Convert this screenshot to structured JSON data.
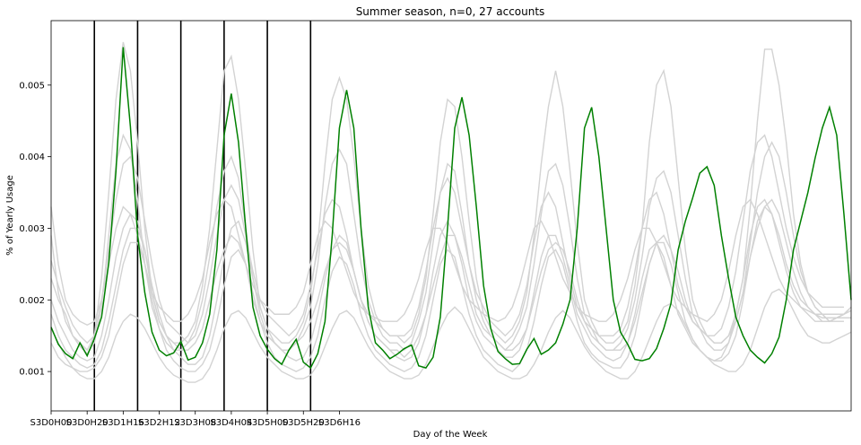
{
  "chart_data": {
    "type": "line",
    "title": "Summer season, n=0, 27 accounts",
    "xlabel": "Day of the Week",
    "ylabel": "% of Yearly Usage",
    "x_start": "S3D0H00",
    "x_step_hours": 4,
    "xtick_labels": [
      "S3D0H00",
      "S3D0H20",
      "S3D1H16",
      "S3D2H12",
      "S3D3H08",
      "S3D4H04",
      "S3D5H00",
      "S3D5H20",
      "S3D6H16"
    ],
    "ytick_labels": [
      "0.001",
      "0.002",
      "0.003",
      "0.004",
      "0.005"
    ],
    "ylim": [
      0.00045,
      0.0059
    ],
    "day_boundaries": [
      "S3D1H00",
      "S3D2H00",
      "S3D3H00",
      "S3D4H00",
      "S3D5H00",
      "S3D6H00"
    ],
    "grid": false,
    "series_colors": {
      "mean": "#008000",
      "accounts": "#d3d3d3"
    },
    "series": [
      {
        "role": "mean",
        "values": [
          0.00162,
          0.00138,
          0.00125,
          0.00118,
          0.0014,
          0.00122,
          0.00146,
          0.00176,
          0.00252,
          0.0038,
          0.00553,
          0.00442,
          0.0029,
          0.0021,
          0.00155,
          0.0013,
          0.00122,
          0.00126,
          0.00142,
          0.00116,
          0.0012,
          0.0014,
          0.0018,
          0.0027,
          0.0043,
          0.00488,
          0.0042,
          0.003,
          0.0019,
          0.0015,
          0.00131,
          0.00118,
          0.0011,
          0.0013,
          0.00145,
          0.00113,
          0.00105,
          0.00125,
          0.0017,
          0.0029,
          0.0044,
          0.00493,
          0.0044,
          0.003,
          0.0019,
          0.0014,
          0.0013,
          0.00118,
          0.00124,
          0.00132,
          0.00137,
          0.00108,
          0.00105,
          0.0012,
          0.00176,
          0.003,
          0.0044,
          0.00483,
          0.0043,
          0.0033,
          0.0022,
          0.0016,
          0.00128,
          0.00118,
          0.0011,
          0.00111,
          0.00131,
          0.00146,
          0.00124,
          0.0013,
          0.0014,
          0.00166,
          0.002,
          0.003,
          0.0044,
          0.00469,
          0.004,
          0.003,
          0.002,
          0.00155,
          0.00138,
          0.00117,
          0.00115,
          0.00118,
          0.00132,
          0.0016,
          0.00195,
          0.0027,
          0.0031,
          0.00342,
          0.00377,
          0.00386,
          0.0036,
          0.0029,
          0.0023,
          0.00176,
          0.0015,
          0.0013,
          0.0012,
          0.00112,
          0.00125,
          0.00148,
          0.002,
          0.0027,
          0.0031,
          0.0035,
          0.00398,
          0.0044,
          0.00469,
          0.0043,
          0.0032,
          0.002
        ]
      },
      {
        "role": "account",
        "values": [
          0.00255,
          0.0022,
          0.0019,
          0.00165,
          0.0015,
          0.0014,
          0.0015,
          0.0023,
          0.0035,
          0.0048,
          0.0056,
          0.0052,
          0.0042,
          0.003,
          0.0021,
          0.0017,
          0.0015,
          0.0014,
          0.0014,
          0.0015,
          0.0017,
          0.0022,
          0.003,
          0.0041,
          0.0052,
          0.0054,
          0.0048,
          0.0038,
          0.0027,
          0.0019,
          0.0016,
          0.0015,
          0.0014,
          0.0014,
          0.0015,
          0.0017,
          0.0021,
          0.0028,
          0.0039,
          0.0048,
          0.0051,
          0.0048,
          0.004,
          0.003,
          0.0022,
          0.0018,
          0.0016,
          0.0015,
          0.0015,
          0.0014,
          0.0015,
          0.0018,
          0.0023,
          0.0032,
          0.0042,
          0.0048,
          0.0047,
          0.004,
          0.0031,
          0.0023,
          0.0018,
          0.0016,
          0.0015,
          0.0014,
          0.0015,
          0.0017,
          0.0021,
          0.0029,
          0.0039,
          0.0047,
          0.0052,
          0.0047,
          0.0038,
          0.0028,
          0.002,
          0.0017,
          0.0015,
          0.0014,
          0.0014,
          0.0015,
          0.0017,
          0.0022,
          0.003,
          0.0042,
          0.005,
          0.0052,
          0.0047,
          0.0037,
          0.0027,
          0.002,
          0.0017,
          0.0015,
          0.0014,
          0.0014,
          0.0015,
          0.0018,
          0.0023,
          0.0033,
          0.0045,
          0.0055,
          0.0055,
          0.005,
          0.0042,
          0.0032,
          0.0025,
          0.0021,
          0.0019,
          0.0018,
          0.0017,
          0.00175,
          0.0018,
          0.0019
        ]
      },
      {
        "role": "account",
        "values": [
          0.0023,
          0.002,
          0.0018,
          0.0015,
          0.00135,
          0.00125,
          0.0014,
          0.0019,
          0.0029,
          0.0039,
          0.0043,
          0.0041,
          0.0034,
          0.0025,
          0.0019,
          0.0016,
          0.0014,
          0.0013,
          0.0013,
          0.0014,
          0.0016,
          0.002,
          0.0026,
          0.0033,
          0.0038,
          0.004,
          0.0037,
          0.003,
          0.0023,
          0.0018,
          0.0015,
          0.0014,
          0.0013,
          0.0013,
          0.0014,
          0.0016,
          0.0019,
          0.0025,
          0.0033,
          0.0039,
          0.0041,
          0.0039,
          0.0032,
          0.0025,
          0.002,
          0.0017,
          0.0015,
          0.0014,
          0.0014,
          0.0013,
          0.0014,
          0.0017,
          0.0021,
          0.0028,
          0.0035,
          0.0039,
          0.0038,
          0.0032,
          0.0025,
          0.002,
          0.0017,
          0.0015,
          0.0014,
          0.0013,
          0.0014,
          0.0016,
          0.0019,
          0.0025,
          0.0032,
          0.0038,
          0.0039,
          0.0036,
          0.003,
          0.0023,
          0.0018,
          0.0016,
          0.0014,
          0.0013,
          0.0013,
          0.0014,
          0.0016,
          0.002,
          0.0026,
          0.0033,
          0.0037,
          0.0038,
          0.0035,
          0.0029,
          0.0023,
          0.0018,
          0.0016,
          0.0014,
          0.0013,
          0.0013,
          0.0014,
          0.0017,
          0.0021,
          0.0028,
          0.0035,
          0.004,
          0.0042,
          0.004,
          0.0035,
          0.0029,
          0.0024,
          0.0021,
          0.0019,
          0.0018,
          0.0017,
          0.00175,
          0.0018,
          0.0019
        ]
      },
      {
        "role": "account",
        "values": [
          0.002,
          0.0017,
          0.0015,
          0.0013,
          0.0012,
          0.00115,
          0.0012,
          0.0015,
          0.002,
          0.0026,
          0.003,
          0.0032,
          0.0031,
          0.0027,
          0.0021,
          0.0017,
          0.0015,
          0.0014,
          0.0013,
          0.0013,
          0.0014,
          0.0016,
          0.002,
          0.0024,
          0.0027,
          0.0029,
          0.0028,
          0.0025,
          0.002,
          0.0017,
          0.0015,
          0.0014,
          0.0013,
          0.0013,
          0.0014,
          0.0015,
          0.0017,
          0.002,
          0.0024,
          0.0027,
          0.0028,
          0.0027,
          0.0024,
          0.002,
          0.0017,
          0.0015,
          0.0014,
          0.0013,
          0.0013,
          0.0012,
          0.0013,
          0.0015,
          0.0018,
          0.0022,
          0.0026,
          0.0029,
          0.0029,
          0.0026,
          0.0022,
          0.0018,
          0.0016,
          0.0015,
          0.0014,
          0.0013,
          0.0013,
          0.0014,
          0.0016,
          0.002,
          0.0024,
          0.0027,
          0.0028,
          0.0027,
          0.0024,
          0.002,
          0.0017,
          0.0015,
          0.0014,
          0.0013,
          0.0013,
          0.0013,
          0.0014,
          0.0017,
          0.0021,
          0.0025,
          0.0028,
          0.0029,
          0.0027,
          0.0024,
          0.002,
          0.0017,
          0.0016,
          0.0015,
          0.0014,
          0.0014,
          0.0015,
          0.0017,
          0.0021,
          0.0026,
          0.003,
          0.0033,
          0.0034,
          0.0032,
          0.0028,
          0.0024,
          0.0021,
          0.0019,
          0.0018,
          0.0017,
          0.0017,
          0.00175,
          0.0018,
          0.00185
        ]
      },
      {
        "role": "account",
        "values": [
          0.0016,
          0.0014,
          0.0012,
          0.00105,
          0.00095,
          0.0009,
          0.0009,
          0.001,
          0.0012,
          0.0015,
          0.0017,
          0.0018,
          0.00175,
          0.0016,
          0.0014,
          0.0012,
          0.00105,
          0.00095,
          0.0009,
          0.00085,
          0.00085,
          0.0009,
          0.00105,
          0.0013,
          0.0016,
          0.0018,
          0.00185,
          0.00175,
          0.00155,
          0.00135,
          0.0012,
          0.0011,
          0.001,
          0.00095,
          0.0009,
          0.0009,
          0.00095,
          0.0011,
          0.00135,
          0.0016,
          0.0018,
          0.00185,
          0.00175,
          0.00155,
          0.00135,
          0.0012,
          0.0011,
          0.001,
          0.00095,
          0.0009,
          0.0009,
          0.00095,
          0.0011,
          0.00135,
          0.0016,
          0.0018,
          0.0019,
          0.0018,
          0.0016,
          0.0014,
          0.0012,
          0.0011,
          0.001,
          0.00095,
          0.0009,
          0.0009,
          0.00095,
          0.0011,
          0.0013,
          0.00155,
          0.00175,
          0.00185,
          0.00175,
          0.00155,
          0.00135,
          0.0012,
          0.0011,
          0.001,
          0.00095,
          0.0009,
          0.0009,
          0.001,
          0.0012,
          0.00145,
          0.0017,
          0.0019,
          0.00195,
          0.00185,
          0.00165,
          0.00145,
          0.0013,
          0.0012,
          0.0011,
          0.00105,
          0.001,
          0.001,
          0.0011,
          0.0013,
          0.0016,
          0.0019,
          0.0021,
          0.00215,
          0.00205,
          0.00185,
          0.00165,
          0.0015,
          0.00145,
          0.0014,
          0.0014,
          0.00145,
          0.0015,
          0.00155
        ]
      },
      {
        "role": "account",
        "values": [
          0.0029,
          0.0021,
          0.0017,
          0.0015,
          0.0014,
          0.0013,
          0.0015,
          0.002,
          0.0027,
          0.0034,
          0.0039,
          0.004,
          0.0037,
          0.0031,
          0.0025,
          0.002,
          0.0017,
          0.0016,
          0.0015,
          0.0014,
          0.0015,
          0.0018,
          0.0023,
          0.0029,
          0.0034,
          0.0036,
          0.0034,
          0.0029,
          0.0024,
          0.002,
          0.0018,
          0.0017,
          0.0016,
          0.0015,
          0.0016,
          0.0018,
          0.0022,
          0.0027,
          0.0032,
          0.0034,
          0.0033,
          0.0029,
          0.0024,
          0.002,
          0.0018,
          0.0017,
          0.0016,
          0.0015,
          0.0015,
          0.0015,
          0.0016,
          0.0019,
          0.0024,
          0.003,
          0.0035,
          0.0037,
          0.0035,
          0.003,
          0.0025,
          0.0021,
          0.0019,
          0.0017,
          0.0016,
          0.0015,
          0.0016,
          0.0018,
          0.0022,
          0.0028,
          0.0033,
          0.0035,
          0.0033,
          0.0028,
          0.0023,
          0.0019,
          0.0017,
          0.0016,
          0.0015,
          0.0015,
          0.0015,
          0.0016,
          0.0019,
          0.0024,
          0.003,
          0.0034,
          0.0035,
          0.0032,
          0.0027,
          0.0022,
          0.0019,
          0.0017,
          0.0016,
          0.0015,
          0.0015,
          0.0016,
          0.0019,
          0.0024,
          0.0031,
          0.0038,
          0.0042,
          0.0043,
          0.004,
          0.0035,
          0.003,
          0.0026,
          0.0023,
          0.0021,
          0.002,
          0.0019,
          0.0019,
          0.0019,
          0.0019
        ]
      },
      {
        "role": "account",
        "values": [
          0.0018,
          0.0015,
          0.0013,
          0.0012,
          0.0011,
          0.00105,
          0.0011,
          0.0013,
          0.0017,
          0.0022,
          0.0027,
          0.003,
          0.003,
          0.0027,
          0.0022,
          0.0018,
          0.0015,
          0.0013,
          0.0012,
          0.0011,
          0.0011,
          0.0012,
          0.0015,
          0.002,
          0.0026,
          0.003,
          0.0031,
          0.0028,
          0.0023,
          0.0019,
          0.0016,
          0.0014,
          0.0013,
          0.0012,
          0.00115,
          0.0012,
          0.0014,
          0.0018,
          0.0023,
          0.0027,
          0.0029,
          0.0028,
          0.0024,
          0.002,
          0.0017,
          0.0015,
          0.0014,
          0.0013,
          0.0012,
          0.00115,
          0.0012,
          0.0014,
          0.0018,
          0.0024,
          0.0029,
          0.0031,
          0.0029,
          0.0025,
          0.002,
          0.0017,
          0.0015,
          0.0014,
          0.0013,
          0.0012,
          0.0012,
          0.0013,
          0.0016,
          0.0021,
          0.0026,
          0.0029,
          0.0029,
          0.0026,
          0.0022,
          0.0018,
          0.0016,
          0.0014,
          0.0013,
          0.0012,
          0.00115,
          0.0012,
          0.0014,
          0.0018,
          0.0023,
          0.0027,
          0.0028,
          0.0026,
          0.0022,
          0.0018,
          0.0016,
          0.0014,
          0.0013,
          0.0012,
          0.00115,
          0.0012,
          0.0014,
          0.0018,
          0.0023,
          0.0029,
          0.0033,
          0.0034,
          0.0032,
          0.0028,
          0.0024,
          0.0021,
          0.0019,
          0.0018,
          0.0017,
          0.0017,
          0.0017,
          0.0017,
          0.0017
        ]
      },
      {
        "role": "account",
        "values": [
          0.0033,
          0.0025,
          0.002,
          0.0018,
          0.0017,
          0.00165,
          0.0017,
          0.002,
          0.0025,
          0.003,
          0.0033,
          0.0032,
          0.0029,
          0.0025,
          0.0021,
          0.0019,
          0.0018,
          0.0017,
          0.0017,
          0.0018,
          0.002,
          0.0023,
          0.0028,
          0.0032,
          0.0034,
          0.0033,
          0.0029,
          0.0025,
          0.0022,
          0.002,
          0.0019,
          0.0018,
          0.0018,
          0.0018,
          0.0019,
          0.0021,
          0.0025,
          0.0029,
          0.0031,
          0.003,
          0.0027,
          0.0024,
          0.0021,
          0.0019,
          0.0018,
          0.00175,
          0.0017,
          0.0017,
          0.0017,
          0.0018,
          0.002,
          0.0023,
          0.0027,
          0.003,
          0.003,
          0.0028,
          0.0025,
          0.0022,
          0.002,
          0.0019,
          0.0018,
          0.00175,
          0.0017,
          0.00175,
          0.0019,
          0.0022,
          0.0026,
          0.003,
          0.0031,
          0.0029,
          0.0026,
          0.0023,
          0.0021,
          0.0019,
          0.0018,
          0.00175,
          0.0017,
          0.0017,
          0.0018,
          0.002,
          0.0023,
          0.0027,
          0.003,
          0.003,
          0.0028,
          0.0025,
          0.0022,
          0.002,
          0.0019,
          0.0018,
          0.00175,
          0.0017,
          0.0018,
          0.002,
          0.0024,
          0.0029,
          0.0033,
          0.0034,
          0.0032,
          0.0029,
          0.0026,
          0.0023,
          0.0021,
          0.002,
          0.0019,
          0.00185,
          0.0018,
          0.0018,
          0.0018,
          0.0018,
          0.0018
        ]
      },
      {
        "role": "account",
        "values": [
          0.0014,
          0.0012,
          0.0011,
          0.00105,
          0.001,
          0.001,
          0.00105,
          0.0012,
          0.0015,
          0.002,
          0.0025,
          0.0028,
          0.0028,
          0.0025,
          0.002,
          0.0016,
          0.0013,
          0.00115,
          0.00105,
          0.001,
          0.001,
          0.0011,
          0.0013,
          0.0017,
          0.0022,
          0.0026,
          0.0027,
          0.0025,
          0.0021,
          0.0017,
          0.0014,
          0.0012,
          0.0011,
          0.00105,
          0.001,
          0.00105,
          0.0012,
          0.0015,
          0.002,
          0.0024,
          0.0026,
          0.0025,
          0.0022,
          0.0018,
          0.0015,
          0.0013,
          0.0012,
          0.0011,
          0.00105,
          0.001,
          0.00105,
          0.0012,
          0.0015,
          0.002,
          0.0025,
          0.0027,
          0.0026,
          0.0022,
          0.0018,
          0.0015,
          0.0013,
          0.0012,
          0.0011,
          0.00105,
          0.001,
          0.0011,
          0.0013,
          0.0017,
          0.0022,
          0.0026,
          0.0027,
          0.0025,
          0.0021,
          0.0017,
          0.0014,
          0.00125,
          0.00115,
          0.0011,
          0.00105,
          0.00105,
          0.0012,
          0.0015,
          0.002,
          0.0025,
          0.0028,
          0.0028,
          0.0025,
          0.0021,
          0.0017,
          0.00145,
          0.0013,
          0.0012,
          0.00115,
          0.00115,
          0.00125,
          0.0015,
          0.002,
          0.0026,
          0.0031,
          0.0033,
          0.0032,
          0.0029,
          0.0025,
          0.0022,
          0.002,
          0.0019,
          0.0018,
          0.00175,
          0.00175,
          0.00175,
          0.00175,
          0.00175
        ]
      }
    ]
  }
}
